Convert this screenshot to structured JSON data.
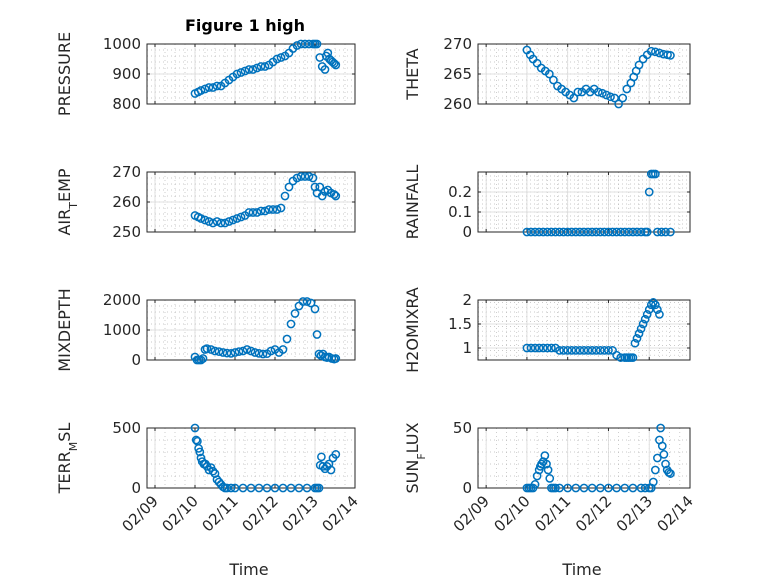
{
  "figure": {
    "title": "Figure 1 high",
    "marker_color": "#0072bd"
  },
  "chart_data": [
    {
      "type": "scatter",
      "ylabel": "PRESSURE",
      "ylim": [
        800,
        1000
      ],
      "yticks": [
        800,
        900,
        1000
      ],
      "yticklabels": [
        "800",
        "900",
        "1000"
      ],
      "x": [
        0.0,
        0.08,
        0.15,
        0.25,
        0.35,
        0.45,
        0.55,
        0.65,
        0.75,
        0.85,
        0.95,
        1.05,
        1.15,
        1.25,
        1.35,
        1.45,
        1.55,
        1.65,
        1.75,
        1.85,
        1.95,
        2.05,
        2.15,
        2.25,
        2.35,
        2.45,
        2.55,
        2.65,
        2.75,
        2.85,
        2.95,
        3.0,
        3.05,
        3.12,
        3.18,
        3.25,
        3.28,
        3.32,
        3.36,
        3.4,
        3.44,
        3.48,
        3.52
      ],
      "y": [
        835,
        840,
        845,
        850,
        855,
        855,
        860,
        860,
        870,
        880,
        890,
        900,
        905,
        910,
        915,
        915,
        920,
        925,
        925,
        930,
        940,
        950,
        955,
        960,
        970,
        985,
        995,
        1000,
        1000,
        1000,
        1000,
        1000,
        1000,
        955,
        925,
        915,
        960,
        970,
        950,
        945,
        940,
        935,
        930
      ]
    },
    {
      "type": "scatter",
      "ylabel": "THETA",
      "ylim": [
        260,
        270
      ],
      "yticks": [
        260,
        265,
        270
      ],
      "yticklabels": [
        "260",
        "265",
        "270"
      ],
      "x": [
        0.0,
        0.08,
        0.15,
        0.25,
        0.35,
        0.45,
        0.55,
        0.65,
        0.75,
        0.85,
        0.95,
        1.05,
        1.15,
        1.25,
        1.35,
        1.45,
        1.55,
        1.65,
        1.75,
        1.85,
        1.95,
        2.05,
        2.15,
        2.25,
        2.35,
        2.45,
        2.55,
        2.62,
        2.68,
        2.75,
        2.85,
        2.95,
        3.05,
        3.15,
        3.25,
        3.35,
        3.45,
        3.52
      ],
      "y": [
        269,
        268.2,
        267.5,
        266.8,
        266,
        265.5,
        265,
        264,
        263,
        262.5,
        262,
        261.5,
        261,
        262,
        262,
        262.5,
        262,
        262.5,
        262,
        261.8,
        261.5,
        261.2,
        261,
        260,
        261,
        262.5,
        263.5,
        264.5,
        265.5,
        266.5,
        267.5,
        268.2,
        268.8,
        268.7,
        268.5,
        268.3,
        268.2,
        268.1
      ]
    },
    {
      "type": "scatter",
      "ylabel": "AIR_TEMP",
      "ylabel_parts": {
        "base": "AIR",
        "sub": "T",
        "rest": "EMP"
      },
      "ylim": [
        250,
        270
      ],
      "yticks": [
        250,
        260,
        270
      ],
      "yticklabels": [
        "250",
        "260",
        "270"
      ],
      "x": [
        0.0,
        0.08,
        0.15,
        0.25,
        0.35,
        0.45,
        0.55,
        0.65,
        0.75,
        0.85,
        0.95,
        1.05,
        1.15,
        1.25,
        1.35,
        1.45,
        1.55,
        1.65,
        1.75,
        1.85,
        1.95,
        2.05,
        2.15,
        2.25,
        2.35,
        2.45,
        2.55,
        2.65,
        2.75,
        2.85,
        2.95,
        3.0,
        3.05,
        3.12,
        3.18,
        3.25,
        3.32,
        3.4,
        3.48,
        3.52
      ],
      "y": [
        255.5,
        255,
        254.5,
        254,
        253.5,
        253,
        253.5,
        253,
        253,
        253.5,
        254,
        254.5,
        255,
        255.5,
        256.5,
        256.5,
        256.5,
        257,
        257,
        257.5,
        257.5,
        257.5,
        258,
        262,
        265,
        267,
        268,
        268.5,
        268.5,
        268.5,
        268,
        265,
        263,
        265,
        262,
        263.5,
        264,
        263,
        262.5,
        262
      ]
    },
    {
      "type": "scatter",
      "ylabel": "RAINFALL",
      "ylim": [
        0,
        0.3
      ],
      "yticks": [
        0,
        0.1,
        0.2
      ],
      "yticklabels": [
        "0",
        "0.1",
        "0.2"
      ],
      "x": [
        0.0,
        0.1,
        0.2,
        0.3,
        0.4,
        0.5,
        0.6,
        0.7,
        0.8,
        0.9,
        1.0,
        1.1,
        1.2,
        1.3,
        1.4,
        1.5,
        1.6,
        1.7,
        1.8,
        1.9,
        2.0,
        2.1,
        2.2,
        2.3,
        2.4,
        2.5,
        2.6,
        2.7,
        2.8,
        2.9,
        2.95,
        3.0,
        3.05,
        3.1,
        3.15,
        3.2,
        3.3,
        3.4,
        3.52
      ],
      "y": [
        0,
        0,
        0,
        0,
        0,
        0,
        0,
        0,
        0,
        0,
        0,
        0,
        0,
        0,
        0,
        0,
        0,
        0,
        0,
        0,
        0,
        0,
        0,
        0,
        0,
        0,
        0,
        0,
        0,
        0,
        0,
        0.2,
        0.29,
        0.29,
        0.29,
        0,
        0,
        0,
        0
      ]
    },
    {
      "type": "scatter",
      "ylabel": "MIXDEPTH",
      "ylim": [
        0,
        2000
      ],
      "yticks": [
        0,
        1000,
        2000
      ],
      "yticklabels": [
        "0",
        "1000",
        "2000"
      ],
      "x": [
        0.0,
        0.05,
        0.1,
        0.15,
        0.2,
        0.25,
        0.3,
        0.4,
        0.5,
        0.6,
        0.7,
        0.8,
        0.9,
        1.0,
        1.1,
        1.2,
        1.3,
        1.4,
        1.5,
        1.6,
        1.7,
        1.8,
        1.9,
        2.0,
        2.1,
        2.2,
        2.3,
        2.4,
        2.5,
        2.6,
        2.7,
        2.8,
        2.9,
        3.0,
        3.05,
        3.1,
        3.15,
        3.2,
        3.25,
        3.3,
        3.35,
        3.42,
        3.48,
        3.52
      ],
      "y": [
        100,
        0,
        0,
        0,
        50,
        350,
        380,
        350,
        300,
        280,
        250,
        230,
        220,
        250,
        280,
        300,
        350,
        300,
        250,
        220,
        200,
        210,
        300,
        350,
        250,
        350,
        700,
        1200,
        1550,
        1800,
        1950,
        1950,
        1900,
        1700,
        850,
        200,
        150,
        200,
        100,
        80,
        100,
        50,
        30,
        50
      ]
    },
    {
      "type": "scatter",
      "ylabel": "H2OMIXRA",
      "ylim": [
        0.75,
        2.0
      ],
      "yticks": [
        1,
        1.5,
        2
      ],
      "yticklabels": [
        "1",
        "1.5",
        "2"
      ],
      "x": [
        0.0,
        0.1,
        0.2,
        0.3,
        0.4,
        0.5,
        0.6,
        0.7,
        0.8,
        0.9,
        1.0,
        1.1,
        1.2,
        1.3,
        1.4,
        1.5,
        1.6,
        1.7,
        1.8,
        1.9,
        2.0,
        2.1,
        2.2,
        2.3,
        2.4,
        2.45,
        2.5,
        2.55,
        2.6,
        2.65,
        2.7,
        2.75,
        2.8,
        2.85,
        2.9,
        2.95,
        3.0,
        3.05,
        3.1,
        3.15,
        3.2,
        3.25
      ],
      "y": [
        1,
        1,
        1,
        1,
        1,
        1,
        1,
        1,
        0.95,
        0.95,
        0.95,
        0.95,
        0.95,
        0.95,
        0.95,
        0.95,
        0.95,
        0.95,
        0.95,
        0.95,
        0.95,
        0.95,
        0.85,
        0.8,
        0.8,
        0.8,
        0.8,
        0.8,
        0.8,
        1.1,
        1.2,
        1.3,
        1.4,
        1.5,
        1.6,
        1.7,
        1.8,
        1.9,
        1.95,
        1.9,
        1.8,
        1.7
      ]
    },
    {
      "type": "scatter",
      "ylabel": "TERR_MSL",
      "ylabel_parts": {
        "base": "TERR",
        "sub": "M",
        "rest": "SL"
      },
      "ylim": [
        0,
        500
      ],
      "yticks": [
        0,
        500
      ],
      "yticklabels": [
        "0",
        "500"
      ],
      "x": [
        0.0,
        0.03,
        0.06,
        0.09,
        0.12,
        0.15,
        0.18,
        0.22,
        0.26,
        0.3,
        0.35,
        0.4,
        0.45,
        0.5,
        0.55,
        0.6,
        0.65,
        0.7,
        0.75,
        0.8,
        0.9,
        1.0,
        1.2,
        1.4,
        1.6,
        1.8,
        2.0,
        2.2,
        2.4,
        2.6,
        2.8,
        3.0,
        3.05,
        3.1,
        3.13,
        3.16,
        3.2,
        3.25,
        3.3,
        3.35,
        3.4,
        3.45,
        3.52
      ],
      "y": [
        500,
        400,
        390,
        330,
        300,
        250,
        220,
        200,
        200,
        180,
        150,
        170,
        140,
        120,
        70,
        50,
        30,
        10,
        0,
        0,
        0,
        0,
        0,
        0,
        0,
        0,
        0,
        0,
        0,
        0,
        0,
        0,
        0,
        0,
        190,
        260,
        180,
        160,
        180,
        200,
        150,
        250,
        280
      ]
    },
    {
      "type": "scatter",
      "ylabel": "SUN_FLUX",
      "ylabel_parts": {
        "base": "SUN",
        "sub": "F",
        "rest": "LUX"
      },
      "ylim": [
        0,
        50
      ],
      "yticks": [
        0,
        50
      ],
      "yticklabels": [
        "0",
        "50"
      ],
      "x": [
        0.0,
        0.05,
        0.1,
        0.15,
        0.2,
        0.25,
        0.3,
        0.33,
        0.36,
        0.4,
        0.44,
        0.48,
        0.52,
        0.56,
        0.6,
        0.65,
        0.7,
        0.8,
        1.0,
        1.2,
        1.4,
        1.6,
        1.8,
        2.0,
        2.2,
        2.4,
        2.6,
        2.8,
        2.9,
        3.0,
        3.05,
        3.1,
        3.15,
        3.2,
        3.25,
        3.28,
        3.32,
        3.36,
        3.4,
        3.44,
        3.48,
        3.52
      ],
      "y": [
        0,
        0,
        0,
        0,
        3,
        10,
        15,
        18,
        20,
        22,
        27,
        20,
        15,
        8,
        0,
        0,
        0,
        0,
        0,
        0,
        0,
        0,
        0,
        0,
        0,
        0,
        0,
        0,
        0,
        0,
        0,
        5,
        15,
        25,
        40,
        50,
        35,
        28,
        20,
        15,
        13,
        12
      ]
    }
  ],
  "x_axis": {
    "ticks": [
      -1,
      0,
      1,
      2,
      3,
      4
    ],
    "labels": [
      "02/09",
      "02/10",
      "02/11",
      "02/12",
      "02/13",
      "02/14"
    ],
    "xlim": [
      -1.2,
      4
    ],
    "xlabel": "Time"
  }
}
